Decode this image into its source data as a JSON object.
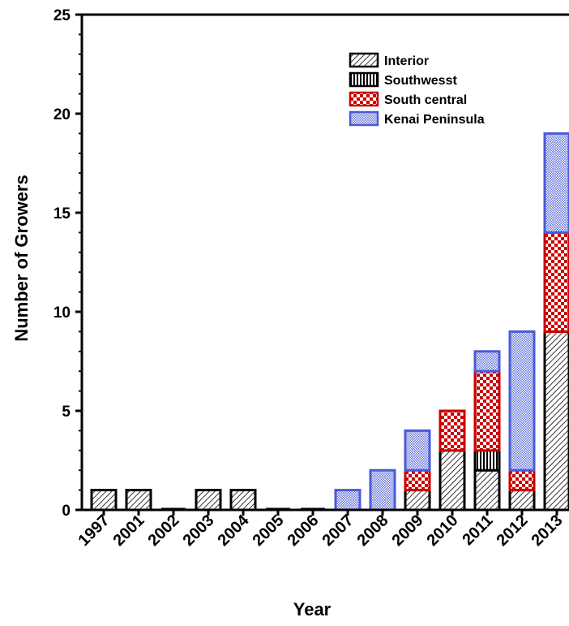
{
  "chart_data": {
    "type": "bar",
    "stacked": true,
    "title": "",
    "xlabel": "Year",
    "ylabel": "Number of Growers",
    "categories": [
      "1997",
      "2001",
      "2002",
      "2003",
      "2004",
      "2005",
      "2006",
      "2007",
      "2008",
      "2009",
      "2010",
      "2011",
      "2012",
      "2013"
    ],
    "ylim": [
      0,
      25
    ],
    "yticks": [
      "0",
      "5",
      "10",
      "15",
      "20",
      "25"
    ],
    "grid": false,
    "legend_position": "top-right",
    "series": [
      {
        "name": "Interior",
        "values": [
          1,
          1,
          0,
          1,
          1,
          0,
          0,
          0,
          0,
          1,
          3,
          2,
          1,
          9
        ],
        "color": "#000000",
        "pattern": "diagonal-hatch"
      },
      {
        "name": "Southwesst",
        "values": [
          0,
          0,
          0,
          0,
          0,
          0,
          0,
          0,
          0,
          0,
          0,
          1,
          0,
          0
        ],
        "color": "#000000",
        "pattern": "vertical-stripes"
      },
      {
        "name": "South central",
        "values": [
          0,
          0,
          0,
          0,
          0,
          0,
          0,
          0,
          0,
          1,
          2,
          4,
          1,
          5
        ],
        "color": "#cc0000",
        "pattern": "checkerboard"
      },
      {
        "name": "Kenai Peninsula",
        "values": [
          0,
          0,
          0,
          0,
          0,
          0,
          0,
          1,
          2,
          2,
          0,
          1,
          7,
          5
        ],
        "color": "#4a5bd6",
        "pattern": "fine-dots"
      }
    ]
  }
}
